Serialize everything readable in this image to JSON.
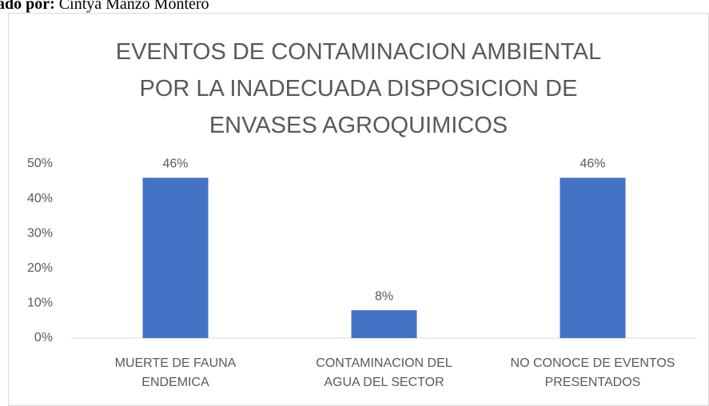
{
  "caption_label": "ado por:",
  "caption": "Cintya Manzo Montero",
  "chart_data": {
    "type": "bar",
    "title": "EVENTOS DE CONTAMINACION AMBIENTAL\nPOR LA INADECUADA  DISPOSICION DE\nENVASES AGROQUIMICOS",
    "categories": [
      "MUERTE DE FAUNA\nENDEMICA",
      "CONTAMINACION DEL\nAGUA DEL SECTOR",
      "NO CONOCE DE EVENTOS\nPRESENTADOS"
    ],
    "values": [
      46,
      8,
      46
    ],
    "value_labels": [
      "46%",
      "8%",
      "46%"
    ],
    "color": "#4472c4",
    "ylim": [
      0,
      50
    ],
    "yticks": [
      {
        "value": 0,
        "label": "0%"
      },
      {
        "value": 10,
        "label": "10%"
      },
      {
        "value": 20,
        "label": "20%"
      },
      {
        "value": 30,
        "label": "30%"
      },
      {
        "value": 40,
        "label": "40%"
      },
      {
        "value": 50,
        "label": "50%"
      }
    ],
    "grid": false
  }
}
